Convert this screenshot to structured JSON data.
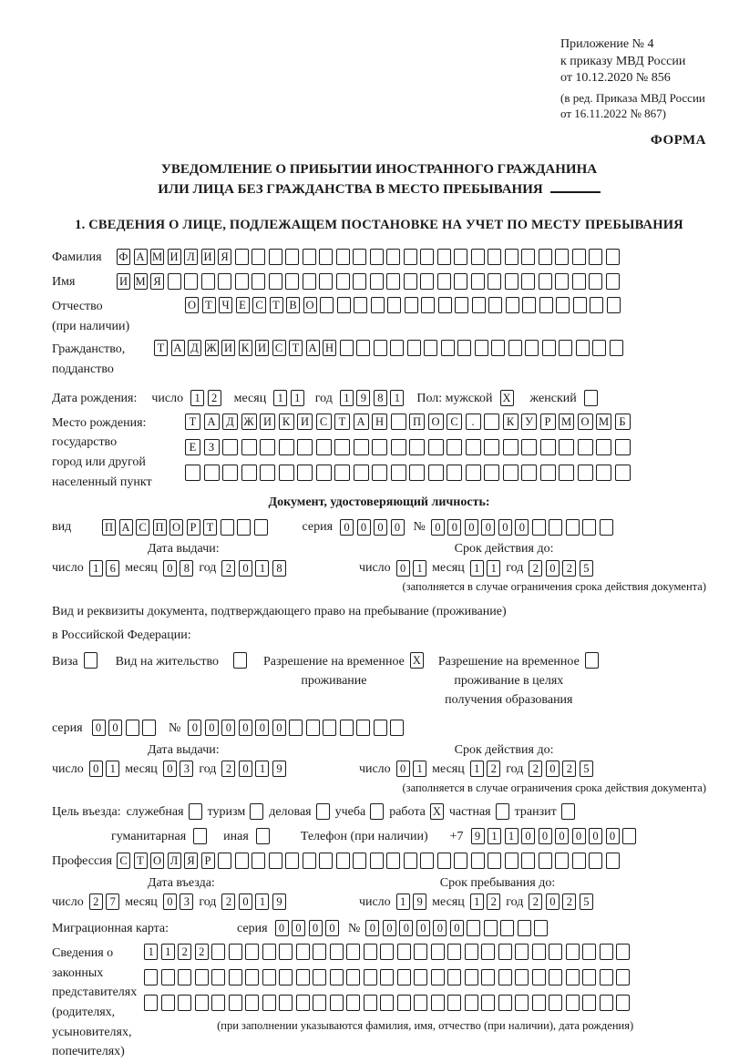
{
  "meta": {
    "paper": "#ffffff",
    "ink": "#1a1a1a"
  },
  "header": {
    "appendix": [
      "Приложение № 4",
      "к приказу МВД России",
      "от 10.12.2020 № 856"
    ],
    "appendix_note": [
      "(в ред. Приказа МВД России",
      "от 16.11.2022 № 867)"
    ],
    "form_label": "ФОРМА"
  },
  "title": {
    "line1": "УВЕДОМЛЕНИЕ О ПРИБЫТИИ ИНОСТРАННОГО ГРАЖДАНИНА",
    "line2": "ИЛИ ЛИЦА БЕЗ ГРАЖДАНСТВА В МЕСТО ПРЕБЫВАНИЯ"
  },
  "section1": {
    "heading": "1. СВЕДЕНИЯ О ЛИЦЕ, ПОДЛЕЖАЩЕМ ПОСТАНОВКЕ НА УЧЕТ ПО МЕСТУ ПРЕБЫВАНИЯ"
  },
  "labels": {
    "surname": "Фамилия",
    "given_name": "Имя",
    "patronymic": "Отчество",
    "patronymic_note": "(при наличии)",
    "citizenship_l1": "Гражданство,",
    "citizenship_l2": "подданство",
    "birth_date": "Дата рождения:",
    "day": "число",
    "month": "месяц",
    "year": "год",
    "sex_male": "Пол: мужской",
    "sex_female": "женский",
    "birth_place": "Место рождения:",
    "birth_place_l2": "государство",
    "birth_place_l3": "город или другой",
    "birth_place_l4": "населенный пункт",
    "identity_doc": "Документ, удостоверяющий личность:",
    "doc_type": "вид",
    "series": "серия",
    "number": "№",
    "issue_date": "Дата выдачи:",
    "valid_until": "Срок действия до:",
    "limit_note": "(заполняется в случае ограничения срока действия документа)",
    "residence_line1": "Вид и реквизиты документа, подтверждающего право на пребывание (проживание)",
    "residence_line2": "в Российской Федерации:",
    "visa": "Виза",
    "residence_permit": "Вид на жительство",
    "temp_permit": [
      "Разрешение на временное",
      "проживание"
    ],
    "temp_permit_edu": [
      "Разрешение на временное",
      "проживание в целях",
      "получения образования"
    ],
    "purpose": "Цель въезда:",
    "p_official": "служебная",
    "p_tourism": "туризм",
    "p_business": "деловая",
    "p_study": "учеба",
    "p_work": "работа",
    "p_private": "частная",
    "p_transit": "транзит",
    "p_humanitarian": "гуманитарная",
    "p_other": "иная",
    "phone": "Телефон (при наличии)",
    "phone_prefix": "+7",
    "profession": "Профессия",
    "entry_date": "Дата въезда:",
    "stay_until": "Срок пребывания до:",
    "migration_card": "Миграционная карта:",
    "reps": [
      "Сведения о",
      "законных",
      "представителях",
      "(родителях,",
      "усыновителях,",
      "попечителях)"
    ],
    "reps_note": "(при заполнении указываются фамилия, имя, отчество (при наличии), дата рождения)"
  },
  "cells": {
    "surname": {
      "len": 30,
      "value": "ФАМИЛИЯ"
    },
    "given_name": {
      "len": 30,
      "value": "ИМЯ"
    },
    "patronymic": {
      "len": 26,
      "value": "ОТЧЕСТВО"
    },
    "citizenship": {
      "len": 28,
      "value": "ТАДЖИКИСТАН"
    },
    "birth_day": {
      "len": 2,
      "value": "12"
    },
    "birth_month": {
      "len": 2,
      "value": "11"
    },
    "birth_year": {
      "len": 4,
      "value": "1981"
    },
    "sex_male": {
      "len": 1,
      "value": "X"
    },
    "sex_female": {
      "len": 1,
      "value": ""
    },
    "birth_place1": {
      "len": 24,
      "value": "ТАДЖИКИСТАН ПОС. КУРМОМБ"
    },
    "birth_place2": {
      "len": 24,
      "value": "ЕЗ"
    },
    "birth_place3": {
      "len": 24,
      "value": ""
    },
    "doc_type": {
      "len": 10,
      "value": "ПАСПОРТ"
    },
    "doc_series": {
      "len": 4,
      "value": "0000"
    },
    "doc_number": {
      "len": 11,
      "value": "000000"
    },
    "doc_issue_day": {
      "len": 2,
      "value": "16"
    },
    "doc_issue_month": {
      "len": 2,
      "value": "08"
    },
    "doc_issue_year": {
      "len": 4,
      "value": "2018"
    },
    "doc_valid_day": {
      "len": 2,
      "value": "01"
    },
    "doc_valid_month": {
      "len": 2,
      "value": "11"
    },
    "doc_valid_year": {
      "len": 4,
      "value": "2025"
    },
    "visa_check": {
      "len": 1,
      "value": ""
    },
    "residence_permit_check": {
      "len": 1,
      "value": ""
    },
    "temp_permit_check": {
      "len": 1,
      "value": "X"
    },
    "temp_permit_edu_check": {
      "len": 1,
      "value": ""
    },
    "permit_series": {
      "len": 4,
      "value": "00"
    },
    "permit_number": {
      "len": 13,
      "value": "000000"
    },
    "permit_issue_day": {
      "len": 2,
      "value": "01"
    },
    "permit_issue_month": {
      "len": 2,
      "value": "03"
    },
    "permit_issue_year": {
      "len": 4,
      "value": "2019"
    },
    "permit_valid_day": {
      "len": 2,
      "value": "01"
    },
    "permit_valid_month": {
      "len": 2,
      "value": "12"
    },
    "permit_valid_year": {
      "len": 4,
      "value": "2025"
    },
    "purpose_official": {
      "len": 1,
      "value": ""
    },
    "purpose_tourism": {
      "len": 1,
      "value": ""
    },
    "purpose_business": {
      "len": 1,
      "value": ""
    },
    "purpose_study": {
      "len": 1,
      "value": ""
    },
    "purpose_work": {
      "len": 1,
      "value": "X"
    },
    "purpose_private": {
      "len": 1,
      "value": ""
    },
    "purpose_transit": {
      "len": 1,
      "value": ""
    },
    "purpose_humanitarian": {
      "len": 1,
      "value": ""
    },
    "purpose_other": {
      "len": 1,
      "value": ""
    },
    "phone": {
      "len": 10,
      "value": "911000000"
    },
    "profession": {
      "len": 30,
      "value": "СТОЛЯР"
    },
    "entry_day": {
      "len": 2,
      "value": "27"
    },
    "entry_month": {
      "len": 2,
      "value": "03"
    },
    "entry_year": {
      "len": 4,
      "value": "2019"
    },
    "stay_day": {
      "len": 2,
      "value": "19"
    },
    "stay_month": {
      "len": 2,
      "value": "12"
    },
    "stay_year": {
      "len": 4,
      "value": "2025"
    },
    "mig_series": {
      "len": 4,
      "value": "0000"
    },
    "mig_number": {
      "len": 11,
      "value": "000000"
    },
    "rep_row1": {
      "len": 29,
      "value": "1122"
    },
    "rep_row2": {
      "len": 29,
      "value": ""
    },
    "rep_row3": {
      "len": 29,
      "value": ""
    }
  }
}
